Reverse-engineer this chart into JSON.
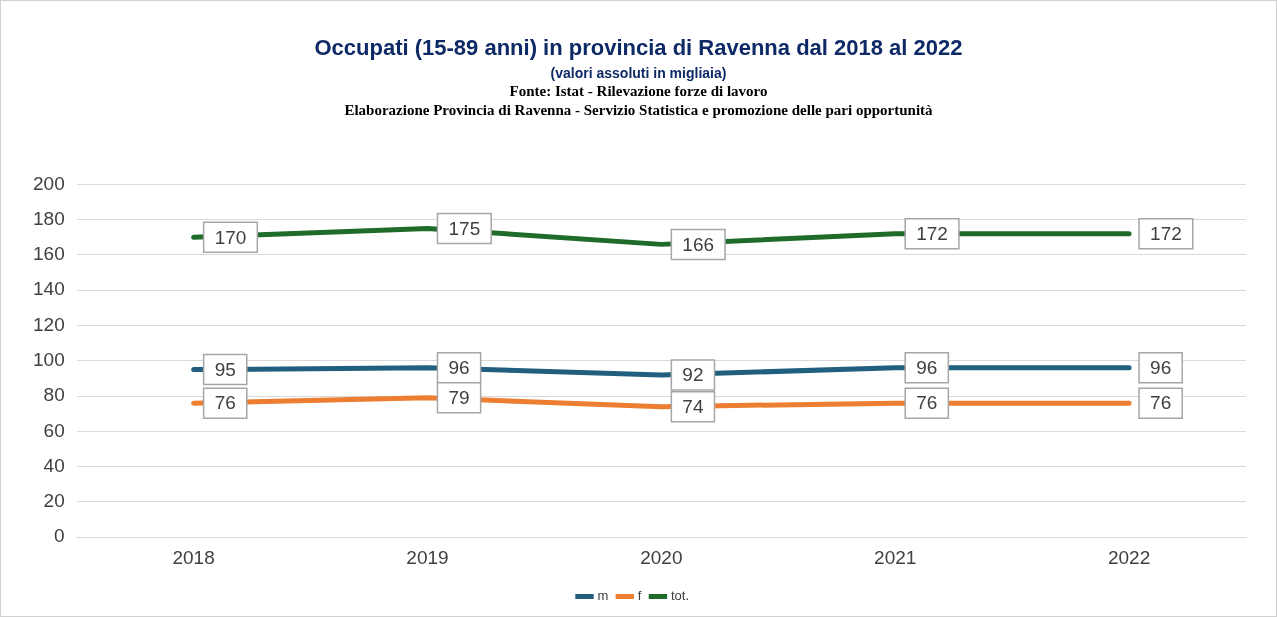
{
  "chart_data": {
    "type": "line",
    "title": "Occupati (15-89 anni) in provincia di Ravenna dal 2018 al 2022",
    "subtitle": "(valori assoluti in migliaia)",
    "annotations": [
      "Fonte: Istat - Rilevazione forze di lavoro",
      "Elaborazione Provincia di Ravenna - Servizio Statistica e promozione delle pari opportunità"
    ],
    "categories": [
      "2018",
      "2019",
      "2020",
      "2021",
      "2022"
    ],
    "series": [
      {
        "name": "m",
        "color": "#215f7f",
        "values": [
          95,
          96,
          92,
          96,
          96
        ]
      },
      {
        "name": "f",
        "color": "#ed7d31",
        "values": [
          76,
          79,
          74,
          76,
          76
        ]
      },
      {
        "name": "tot.",
        "color": "#1e6b2a",
        "values": [
          170,
          175,
          166,
          172,
          172
        ]
      }
    ],
    "ylim": [
      0,
      200
    ],
    "yticks": [
      0,
      20,
      40,
      60,
      80,
      100,
      120,
      140,
      160,
      180,
      200
    ],
    "grid": "y",
    "legend": "bottom",
    "data_labels": true,
    "line_style": "solid"
  }
}
